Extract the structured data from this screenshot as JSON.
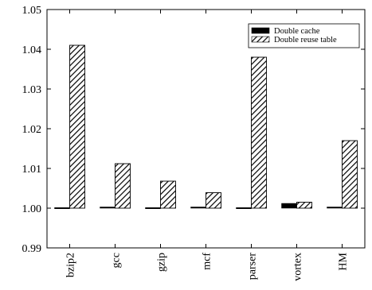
{
  "chart_data": {
    "type": "bar",
    "categories": [
      "bzip2",
      "gcc",
      "gzip",
      "mcf",
      "parser",
      "vortex",
      "HM"
    ],
    "series": [
      {
        "name": "Double cache",
        "values": [
          1.0,
          1.0003,
          1.0002,
          1.0003,
          0.9998,
          1.0012,
          1.0003
        ],
        "pattern": "solid",
        "color": "#000000"
      },
      {
        "name": "Double reuse table",
        "values": [
          1.041,
          1.0112,
          1.0068,
          1.0039,
          1.038,
          1.0015,
          1.017
        ],
        "pattern": "hatched",
        "color": "#000000"
      }
    ],
    "ylim": [
      0.99,
      1.05
    ],
    "yticks": [
      "0.99",
      "1.00",
      "1.01",
      "1.02",
      "1.03",
      "1.04",
      "1.05"
    ],
    "ytick_values": [
      0.99,
      1.0,
      1.01,
      1.02,
      1.03,
      1.04,
      1.05
    ],
    "baseline": 1.0,
    "legend_position": "top-right",
    "grid": false,
    "title": "",
    "xlabel": "",
    "ylabel": ""
  }
}
